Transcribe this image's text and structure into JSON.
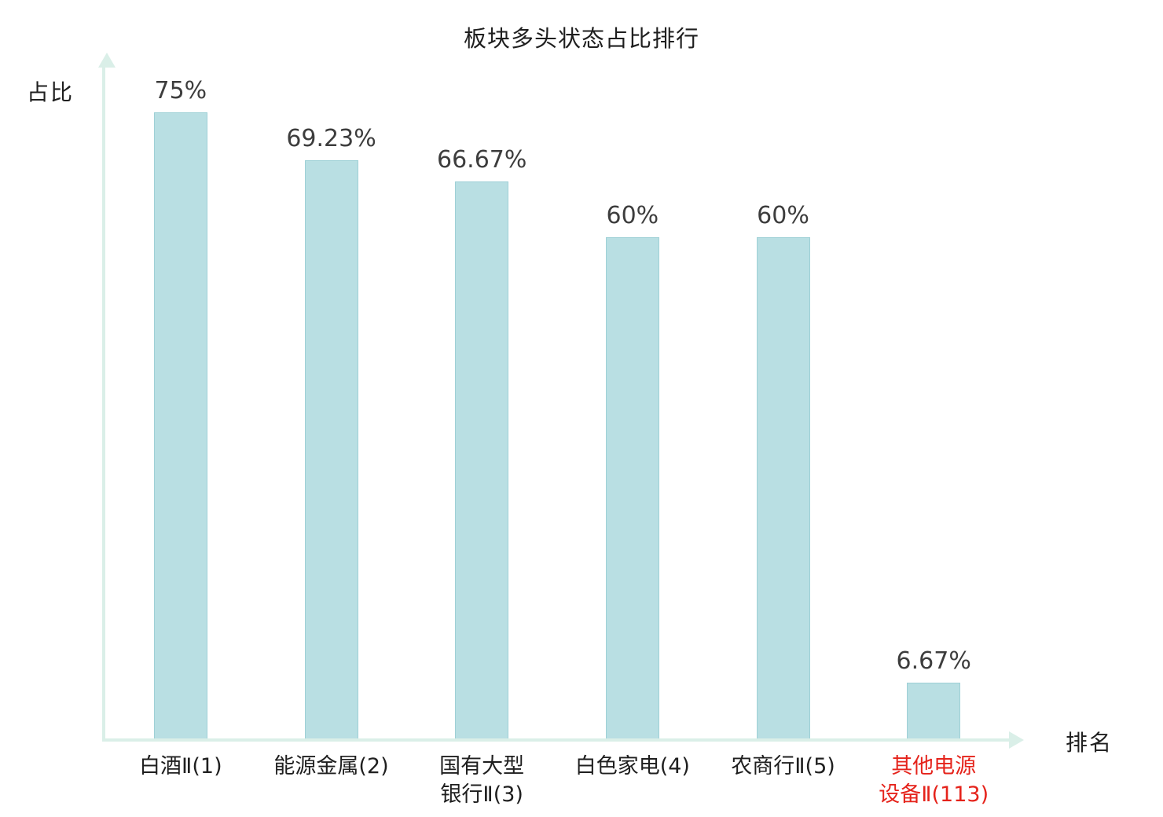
{
  "title": "板块多头状态占比排行",
  "y_axis_label": "占比",
  "x_axis_label": "排名",
  "colors": {
    "bar_fill": "#b9dfe3",
    "bar_border": "#9ed0d6",
    "axis": "#daefe8",
    "text": "#1f1f1f",
    "value_text": "#3d3d3d",
    "highlight": "#e5231b",
    "background": "#ffffff"
  },
  "chart_data": {
    "type": "bar",
    "title": "板块多头状态占比排行",
    "xlabel": "排名",
    "ylabel": "占比",
    "ylim": [
      0,
      80
    ],
    "grid": false,
    "legend": false,
    "categories": [
      "白酒Ⅱ(1)",
      "能源金属(2)",
      "国有大型银行Ⅱ(3)",
      "白色家电(4)",
      "农商行Ⅱ(5)",
      "其他电源设备Ⅱ(113)"
    ],
    "category_lines": [
      [
        "白酒Ⅱ(1)"
      ],
      [
        "能源金属(2)"
      ],
      [
        "国有大型",
        "银行Ⅱ(3)"
      ],
      [
        "白色家电(4)"
      ],
      [
        "农商行Ⅱ(5)"
      ],
      [
        "其他电源",
        "设备Ⅱ(113)"
      ]
    ],
    "values": [
      75,
      69.23,
      66.67,
      60,
      60,
      6.67
    ],
    "value_labels": [
      "75%",
      "69.23%",
      "66.67%",
      "60%",
      "60%",
      "6.67%"
    ],
    "highlight_index": 5
  }
}
